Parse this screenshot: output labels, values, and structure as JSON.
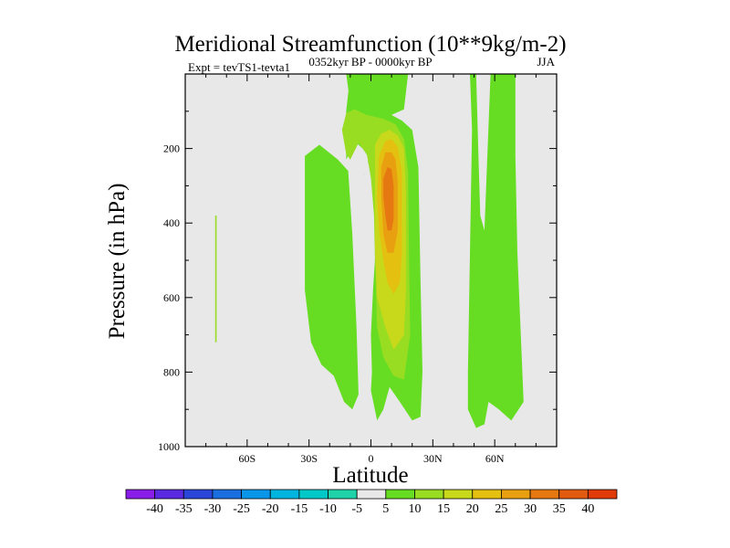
{
  "chart_data": {
    "type": "contour",
    "title": "Meridional Streamfunction (10**9kg/m-2)",
    "left_label": "Expt = tevTS1-tevta1",
    "center_label": "0352kyr BP - 0000kyr BP",
    "right_label": "JJA",
    "xlabel": "Latitude",
    "ylabel": "Pressure (in hPa)",
    "xlim": [
      -90,
      90
    ],
    "ylim": [
      1000,
      0
    ],
    "x_ticks": [
      {
        "value": -60,
        "label": "60S"
      },
      {
        "value": -30,
        "label": "30S"
      },
      {
        "value": 0,
        "label": "0"
      },
      {
        "value": 30,
        "label": "30N"
      },
      {
        "value": 60,
        "label": "60N"
      }
    ],
    "y_ticks": [
      {
        "value": 200,
        "label": "200"
      },
      {
        "value": 400,
        "label": "400"
      },
      {
        "value": 600,
        "label": "600"
      },
      {
        "value": 800,
        "label": "800"
      },
      {
        "value": 1000,
        "label": "1000"
      }
    ],
    "background_color": "#e8e8e8",
    "colorbar": {
      "levels": [
        "-40",
        "-35",
        "-30",
        "-25",
        "-20",
        "-15",
        "-10",
        "-5",
        "5",
        "10",
        "15",
        "20",
        "25",
        "30",
        "35",
        "40"
      ],
      "colors": [
        "#8a1ee8",
        "#5a2ae0",
        "#2a46d8",
        "#1a6ee0",
        "#0a96e8",
        "#00b4e0",
        "#00c8c8",
        "#20d2a8",
        "#e8e8e8",
        "#66dd22",
        "#99dd22",
        "#c8d81a",
        "#e4c010",
        "#e8a010",
        "#e67812",
        "#e05a10",
        "#e03a08"
      ]
    },
    "regions": [
      {
        "value": 5,
        "polygon": [
          [
            -12,
            0
          ],
          [
            -10,
            80
          ],
          [
            -6,
            120
          ],
          [
            -2,
            150
          ],
          [
            6,
            120
          ],
          [
            12,
            105
          ],
          [
            16,
            95
          ],
          [
            18,
            0
          ]
        ]
      },
      {
        "value": -5,
        "polygon": [
          [
            -82,
            0
          ],
          [
            -76,
            0
          ],
          [
            -75,
            720
          ],
          [
            -76,
            830
          ],
          [
            -79,
            890
          ],
          [
            -81,
            800
          ],
          [
            -82,
            720
          ]
        ]
      },
      {
        "value": -5,
        "polygon": [
          [
            -72,
            0
          ],
          [
            -69,
            0
          ],
          [
            -69,
            150
          ],
          [
            -69.5,
            730
          ],
          [
            -70.5,
            850
          ],
          [
            -71.5,
            850
          ],
          [
            -72,
            720
          ]
        ]
      },
      {
        "value": 5,
        "polygon": [
          [
            -32,
            220
          ],
          [
            -25,
            190
          ],
          [
            -16,
            230
          ],
          [
            -11,
            260
          ],
          [
            -9,
            430
          ],
          [
            -7,
            680
          ],
          [
            -6,
            860
          ],
          [
            -9,
            900
          ],
          [
            -13,
            880
          ],
          [
            -18,
            810
          ],
          [
            -24,
            780
          ],
          [
            -29,
            720
          ],
          [
            -32,
            580
          ]
        ]
      },
      {
        "value": 5,
        "polygon": [
          [
            -6,
            40
          ],
          [
            -3,
            80
          ],
          [
            3,
            100
          ],
          [
            10,
            110
          ],
          [
            15,
            125
          ],
          [
            20,
            150
          ],
          [
            23,
            250
          ],
          [
            24,
            550
          ],
          [
            25,
            800
          ],
          [
            24,
            920
          ],
          [
            20,
            930
          ],
          [
            14,
            880
          ],
          [
            9,
            840
          ],
          [
            6,
            900
          ],
          [
            3,
            930
          ],
          [
            0,
            850
          ],
          [
            -2,
            780
          ],
          [
            -3,
            700
          ],
          [
            -3,
            500
          ],
          [
            -3,
            270
          ],
          [
            -1,
            225
          ],
          [
            -4,
            200
          ],
          [
            -8,
            180
          ],
          [
            -12,
            230
          ],
          [
            -12,
            100
          ],
          [
            -10,
            0
          ],
          [
            -6,
            0
          ]
        ]
      },
      {
        "value": -5,
        "polygon": [
          [
            -5,
            420
          ],
          [
            -3,
            270
          ],
          [
            -2,
            230
          ],
          [
            0,
            255
          ],
          [
            2,
            320
          ],
          [
            2.5,
            450
          ],
          [
            1,
            580
          ],
          [
            0,
            700
          ],
          [
            0.5,
            800
          ],
          [
            0,
            850
          ],
          [
            -1,
            950
          ],
          [
            -3,
            860
          ],
          [
            -3,
            800
          ],
          [
            -4,
            730
          ],
          [
            -5,
            600
          ]
        ]
      },
      {
        "value": 10,
        "polygon": [
          [
            -14,
            150
          ],
          [
            -12,
            105
          ],
          [
            -8,
            95
          ],
          [
            -2,
            110
          ],
          [
            6,
            120
          ],
          [
            12,
            135
          ],
          [
            16,
            175
          ],
          [
            18,
            260
          ],
          [
            18.5,
            500
          ],
          [
            19,
            700
          ],
          [
            16,
            820
          ],
          [
            11,
            810
          ],
          [
            6,
            760
          ],
          [
            3,
            680
          ],
          [
            2,
            510
          ],
          [
            1.5,
            380
          ],
          [
            0,
            280
          ],
          [
            -2,
            215
          ],
          [
            -6,
            185
          ],
          [
            -10,
            230
          ],
          [
            -12,
            215
          ]
        ]
      },
      {
        "value": 15,
        "polygon": [
          [
            2,
            190
          ],
          [
            5,
            160
          ],
          [
            9,
            150
          ],
          [
            13,
            165
          ],
          [
            16,
            200
          ],
          [
            17,
            320
          ],
          [
            17,
            580
          ],
          [
            16,
            700
          ],
          [
            11,
            740
          ],
          [
            7,
            680
          ],
          [
            3,
            600
          ],
          [
            2,
            470
          ],
          [
            2,
            300
          ]
        ]
      },
      {
        "value": 20,
        "polygon": [
          [
            4,
            220
          ],
          [
            7,
            180
          ],
          [
            10,
            175
          ],
          [
            13,
            195
          ],
          [
            15,
            260
          ],
          [
            15,
            480
          ],
          [
            14,
            560
          ],
          [
            11,
            590
          ],
          [
            8,
            560
          ],
          [
            6,
            500
          ],
          [
            4,
            420
          ],
          [
            3,
            330
          ]
        ]
      },
      {
        "value": 25,
        "polygon": [
          [
            5,
            250
          ],
          [
            7,
            210
          ],
          [
            10,
            210
          ],
          [
            12,
            230
          ],
          [
            13,
            290
          ],
          [
            13,
            420
          ],
          [
            11,
            480
          ],
          [
            8,
            480
          ],
          [
            6,
            430
          ],
          [
            5,
            330
          ]
        ]
      },
      {
        "value": 30,
        "polygon": [
          [
            6,
            280
          ],
          [
            8,
            250
          ],
          [
            10,
            255
          ],
          [
            11,
            300
          ],
          [
            11,
            390
          ],
          [
            10,
            420
          ],
          [
            8,
            420
          ],
          [
            7,
            380
          ],
          [
            6,
            330
          ]
        ]
      },
      {
        "value": 5,
        "polygon": [
          [
            48,
            0
          ],
          [
            51,
            0
          ],
          [
            52,
            200
          ],
          [
            53,
            380
          ],
          [
            55,
            420
          ],
          [
            58,
            0
          ],
          [
            70,
            0
          ],
          [
            70,
            220
          ],
          [
            71,
            480
          ],
          [
            74,
            880
          ],
          [
            68,
            930
          ],
          [
            62,
            900
          ],
          [
            57,
            880
          ],
          [
            55,
            940
          ],
          [
            51,
            950
          ],
          [
            47,
            900
          ],
          [
            47,
            800
          ],
          [
            49,
            150
          ]
        ]
      },
      {
        "value": -5,
        "polygon": [
          [
            -45.5,
            220
          ],
          [
            -45,
            222
          ],
          [
            -45,
            226
          ],
          [
            -45.5,
            226
          ]
        ]
      },
      {
        "value": 10,
        "polygon": [
          [
            -75.5,
            380
          ],
          [
            -74.8,
            380
          ],
          [
            -74.8,
            720
          ],
          [
            -75.5,
            720
          ]
        ]
      }
    ]
  }
}
